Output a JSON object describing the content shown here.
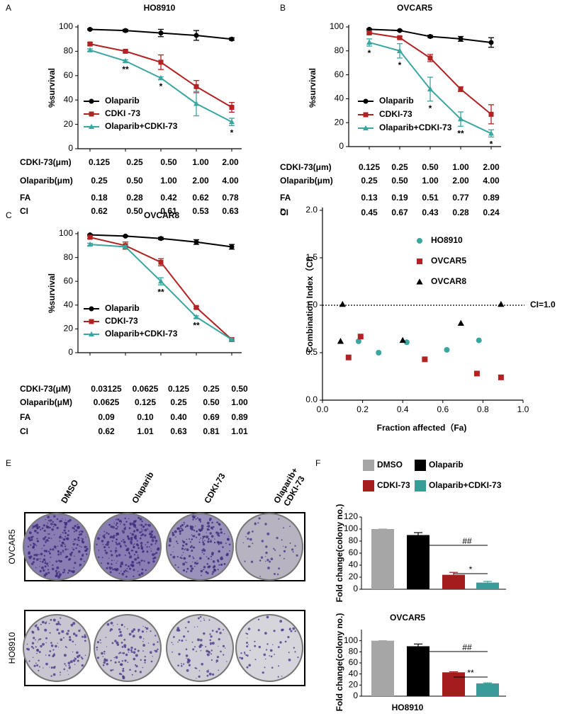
{
  "chart_data": [
    {
      "panel": "A",
      "type": "line",
      "title": "HO8910",
      "y_label": "%survival",
      "ylim": [
        0,
        100
      ],
      "yticks": [
        0,
        20,
        40,
        60,
        80,
        100
      ],
      "series": [
        {
          "name": "Olaparib",
          "color": "#000000",
          "marker": "circle",
          "values": [
            98,
            97,
            95,
            93,
            90
          ],
          "errors": [
            0.5,
            1,
            3,
            4,
            1
          ]
        },
        {
          "name": "CDKI -73",
          "color": "#b22222",
          "marker": "square",
          "values": [
            86,
            80,
            71,
            51,
            34
          ],
          "errors": [
            1,
            1,
            6,
            5,
            4
          ]
        },
        {
          "name": "Olaparib+CDKI-73",
          "color": "#3aa6a0",
          "marker": "triangle",
          "values": [
            81,
            72,
            58,
            37,
            22
          ],
          "errors": [
            1,
            1,
            1,
            10,
            3
          ],
          "significance": [
            null,
            "**",
            "*",
            null,
            "*"
          ]
        }
      ],
      "table": [
        {
          "label": "CDKI-73(μm)",
          "cells": [
            "0.125",
            "0.25",
            "0.50",
            "1.00",
            "2.00"
          ]
        },
        {
          "label": "Olaparib(μm)",
          "cells": [
            "0.25",
            "0.50",
            "1.00",
            "2.00",
            "4.00"
          ]
        },
        {
          "label": "FA",
          "cells": [
            "0.18",
            "0.28",
            "0.42",
            "0.62",
            "0.78"
          ]
        },
        {
          "label": "CI",
          "cells": [
            "0.62",
            "0.50",
            "0.61",
            "0.53",
            "0.63"
          ]
        }
      ]
    },
    {
      "panel": "B",
      "type": "line",
      "title": "OVCAR5",
      "y_label": "%survival",
      "ylim": [
        0,
        100
      ],
      "yticks": [
        0,
        20,
        40,
        60,
        80,
        100
      ],
      "series": [
        {
          "name": "Olaparib",
          "color": "#000000",
          "marker": "circle",
          "values": [
            98,
            97,
            92,
            90,
            87
          ],
          "errors": [
            0.5,
            0.5,
            1,
            2,
            4
          ]
        },
        {
          "name": "CDKI-73",
          "color": "#b22222",
          "marker": "square",
          "values": [
            95,
            91,
            74,
            48,
            27
          ],
          "errors": [
            1,
            1,
            3,
            2,
            8
          ]
        },
        {
          "name": "Olaparib+CDKI-73",
          "color": "#3aa6a0",
          "marker": "triangle",
          "values": [
            87,
            80,
            48,
            23,
            11
          ],
          "errors": [
            3,
            6,
            10,
            6,
            3
          ],
          "significance": [
            "*",
            "*",
            "*",
            "**",
            "*"
          ]
        }
      ],
      "table": [
        {
          "label": "CDKI-73(μm)",
          "cells": [
            "0.125",
            "0.25",
            "0.50",
            "1.00",
            "2.00"
          ]
        },
        {
          "label": "Olaparib(μm)",
          "cells": [
            "0.25",
            "0.50",
            "1.00",
            "2.00",
            "4.00"
          ]
        },
        {
          "label": "FA",
          "cells": [
            "0.13",
            "0.19",
            "0.51",
            "0.77",
            "0.89"
          ]
        },
        {
          "label": "CI",
          "cells": [
            "0.45",
            "0.67",
            "0.43",
            "0.28",
            "0.24"
          ]
        }
      ]
    },
    {
      "panel": "C",
      "type": "line",
      "title": "OVCAR8",
      "y_label": "%survival",
      "ylim": [
        0,
        100
      ],
      "yticks": [
        0,
        20,
        40,
        60,
        80,
        100
      ],
      "series": [
        {
          "name": "Olaparib",
          "color": "#000000",
          "marker": "circle",
          "values": [
            99,
            98,
            96,
            93,
            89
          ],
          "errors": [
            0.5,
            0.5,
            1,
            2,
            2
          ]
        },
        {
          "name": "CDKI-73",
          "color": "#b22222",
          "marker": "square",
          "values": [
            97,
            90,
            76,
            38,
            11
          ],
          "errors": [
            1,
            3,
            3,
            1,
            1
          ]
        },
        {
          "name": "Olaparib+CDKI-73",
          "color": "#3aa6a0",
          "marker": "triangle",
          "values": [
            91,
            89,
            60,
            30,
            11
          ],
          "errors": [
            1,
            1,
            3,
            1,
            1
          ],
          "significance": [
            null,
            null,
            "**",
            "**",
            null
          ]
        }
      ],
      "table": [
        {
          "label": "CDKI-73(μM)",
          "cells": [
            "0.03125",
            "0.0625",
            "0.125",
            "0.25",
            "0.50"
          ]
        },
        {
          "label": "Olaparib(μM)",
          "cells": [
            "0.0625",
            "0.125",
            "0.25",
            "0.50",
            "1.00"
          ]
        },
        {
          "label": "FA",
          "cells": [
            "0.09",
            "0.10",
            "0.40",
            "0.69",
            "0.89"
          ]
        },
        {
          "label": "CI",
          "cells": [
            "0.62",
            "1.01",
            "0.63",
            "0.81",
            "1.01"
          ]
        }
      ]
    },
    {
      "panel": "D",
      "type": "scatter",
      "x_label": "Fraction affected（Fa)",
      "y_label": "Combination Index（CI)",
      "xlim": [
        0,
        1
      ],
      "xticks": [
        {
          "value": 0,
          "label": "0.0"
        },
        0.2,
        0.4,
        0.6,
        0.8,
        {
          "value": 1,
          "label": "1.0"
        }
      ],
      "ylim": [
        0,
        2
      ],
      "yticks": [
        {
          "value": 0,
          "label": "0.0"
        },
        0.5,
        {
          "value": 1,
          "label": "1.0"
        },
        1.5,
        {
          "value": 2,
          "label": "2.0"
        }
      ],
      "reference_line": {
        "value": 1,
        "label": "CI=1.0"
      },
      "series": [
        {
          "name": "HO8910",
          "color": "#3aa6a0",
          "marker": "circle",
          "x": [
            0.18,
            0.28,
            0.42,
            0.62,
            0.78
          ],
          "values": [
            0.62,
            0.5,
            0.61,
            0.53,
            0.63
          ]
        },
        {
          "name": "OVCAR5",
          "color": "#b22222",
          "marker": "square",
          "x": [
            0.13,
            0.19,
            0.51,
            0.77,
            0.89
          ],
          "values": [
            0.45,
            0.67,
            0.43,
            0.28,
            0.24
          ]
        },
        {
          "name": "OVCAR8",
          "color": "#000000",
          "marker": "triangle",
          "x": [
            0.09,
            0.1,
            0.4,
            0.69,
            0.89
          ],
          "values": [
            0.62,
            1.01,
            0.63,
            0.81,
            1.01
          ]
        }
      ]
    },
    {
      "panel": "F",
      "type": "bar",
      "title": "OVCAR5",
      "y_label": "Fold change(colony no.)",
      "categories": [
        "DMSO",
        "Olaparib",
        "CDKI-73",
        "Olaparib+CDKI-73"
      ],
      "colors": [
        "#a6a6a6",
        "#000000",
        "#a31d1d",
        "#3a9c98"
      ],
      "values": [
        100,
        90,
        24,
        11
      ],
      "errors": [
        0,
        4,
        4,
        2
      ],
      "ylim": [
        0,
        120
      ],
      "yticks": [
        0,
        20,
        40,
        60,
        80,
        100,
        120
      ],
      "brackets": [
        {
          "label": "##"
        },
        {
          "label": "*"
        }
      ]
    },
    {
      "type": "bar",
      "title": "HO8910",
      "y_label": "Fold change(colony no.)",
      "colors": [
        "#a6a6a6",
        "#000000",
        "#a31d1d",
        "#3a9c98"
      ],
      "values": [
        100,
        90,
        43,
        23
      ],
      "errors": [
        0,
        4,
        1,
        1
      ],
      "ylim": [
        0,
        120
      ],
      "yticks": [
        0,
        20,
        40,
        60,
        80,
        100
      ],
      "brackets": [
        {
          "label": "##"
        },
        {
          "label": "**"
        }
      ]
    }
  ],
  "colony_assay": {
    "panel": "E",
    "columns": [
      [
        "DMSO"
      ],
      [
        "Olaparib"
      ],
      [
        "CDKI-73"
      ],
      [
        "Olaparib+",
        "CDKI-73"
      ]
    ],
    "rows": [
      "OVCAR5",
      "HO8910"
    ]
  }
}
